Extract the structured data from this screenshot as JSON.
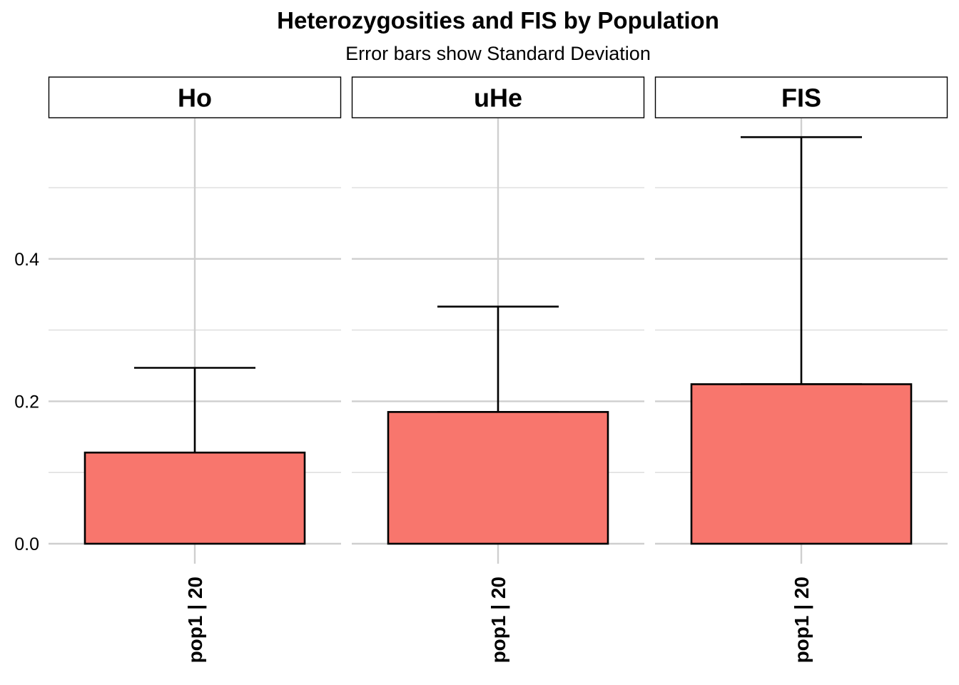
{
  "chart_data": {
    "type": "bar",
    "title": "Heterozygosities and FIS by Population",
    "subtitle": "Error bars show Standard Deviation",
    "xlabel": "",
    "ylabel": "",
    "ylim": [
      0,
      0.6
    ],
    "y_ticks": [
      0.0,
      0.2,
      0.4
    ],
    "y_tick_labels": [
      "0.0",
      "0.2",
      "0.4"
    ],
    "grid": true,
    "bar_color": "#F8766D",
    "facets": [
      {
        "label": "Ho",
        "category": "pop1 | 20",
        "value": 0.128,
        "sd_upper": 0.247
      },
      {
        "label": "uHe",
        "category": "pop1 | 20",
        "value": 0.185,
        "sd_upper": 0.333
      },
      {
        "label": "FIS",
        "category": "pop1 | 20",
        "value": 0.224,
        "sd_upper": 0.571
      }
    ]
  }
}
